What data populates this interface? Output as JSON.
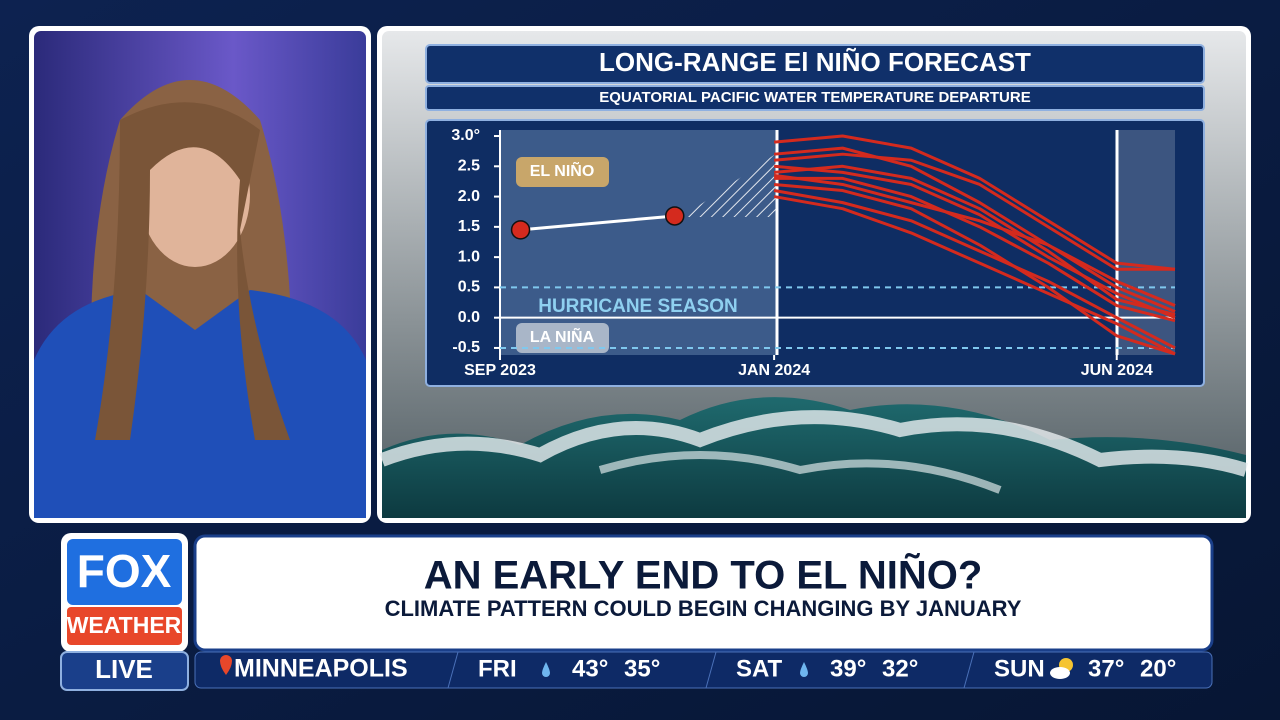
{
  "chart_data": {
    "type": "line",
    "title": "LONG-RANGE El NIÑO FORECAST",
    "subtitle": "EQUATORIAL PACIFIC WATER TEMPERATURE DEPARTURE",
    "annotations": [
      "EL NIÑO",
      "HURRICANE SEASON",
      "LA NIÑA"
    ],
    "xlim": [
      0,
      9.85
    ],
    "xticks": [
      {
        "value": 0,
        "label": "SEP 2023"
      },
      {
        "value": 4,
        "label": "JAN 2024"
      },
      {
        "value": 9,
        "label": "JUN 2024"
      }
    ],
    "ylim": [
      -0.6,
      3.05
    ],
    "yticks": [
      {
        "value": 3,
        "label": "3.0°"
      },
      2.5,
      {
        "value": 2,
        "label": "2.0"
      },
      1.5,
      {
        "value": 1,
        "label": "1.0"
      },
      0.5,
      {
        "value": 0,
        "label": "0.0"
      },
      -0.5
    ],
    "dashed_lines": [
      0.5,
      -0.5
    ],
    "series": [
      {
        "color": "#ffffff",
        "marker_color": "#d42a1e",
        "x": [
          0.3,
          2.55
        ],
        "values": [
          1.45,
          1.68
        ]
      },
      {
        "color": "#d42a1e",
        "x": [
          4,
          5,
          6,
          7,
          8,
          9,
          9.85
        ],
        "values": [
          2.9,
          3.0,
          2.8,
          2.3,
          1.6,
          0.9,
          0.8
        ]
      },
      {
        "color": "#d42a1e",
        "x": [
          4,
          5,
          6,
          7,
          8,
          9,
          9.85
        ],
        "values": [
          2.6,
          2.7,
          2.6,
          2.2,
          1.5,
          0.8,
          0.8
        ]
      },
      {
        "color": "#d42a1e",
        "x": [
          4,
          5,
          6,
          7,
          8,
          9,
          9.85
        ],
        "values": [
          2.5,
          2.4,
          2.2,
          1.7,
          1.0,
          0.4,
          0.0
        ]
      },
      {
        "color": "#d42a1e",
        "x": [
          4,
          5,
          6,
          7,
          8,
          9,
          9.85
        ],
        "values": [
          2.4,
          2.5,
          2.3,
          1.8,
          1.1,
          0.3,
          0.05
        ]
      },
      {
        "color": "#d42a1e",
        "x": [
          4,
          5,
          6,
          7,
          8,
          9,
          9.85
        ],
        "values": [
          2.3,
          2.3,
          2.0,
          1.5,
          0.9,
          0.2,
          -0.05
        ]
      },
      {
        "color": "#d42a1e",
        "x": [
          4,
          5,
          6,
          7,
          8,
          9,
          9.85
        ],
        "values": [
          2.2,
          2.1,
          1.8,
          1.2,
          0.5,
          -0.3,
          -0.6
        ]
      },
      {
        "color": "#d42a1e",
        "x": [
          4,
          5,
          6,
          7,
          8,
          9,
          9.85
        ],
        "values": [
          2.0,
          1.8,
          1.4,
          0.9,
          0.4,
          -0.1,
          -0.6
        ]
      },
      {
        "color": "#d42a1e",
        "x": [
          4,
          5,
          6,
          7,
          8,
          9,
          9.85
        ],
        "values": [
          2.35,
          2.2,
          1.9,
          1.6,
          1.2,
          0.5,
          0.1
        ]
      },
      {
        "color": "#d42a1e",
        "x": [
          4,
          5,
          6,
          7,
          8,
          9,
          9.85
        ],
        "values": [
          2.7,
          2.8,
          2.5,
          1.9,
          1.2,
          0.6,
          0.2
        ]
      },
      {
        "color": "#d42a1e",
        "x": [
          4,
          5,
          6,
          7,
          8,
          9,
          9.85
        ],
        "values": [
          2.1,
          1.9,
          1.6,
          1.1,
          0.6,
          0.0,
          -0.5
        ]
      }
    ]
  },
  "logo": {
    "brand": "FOX",
    "sub": "WEATHER",
    "status": "LIVE"
  },
  "headline": {
    "title": "AN EARLY END TO EL NIÑO?",
    "subtitle": "CLIMATE PATTERN COULD BEGIN CHANGING BY JANUARY"
  },
  "weather": {
    "location": "MINNEAPOLIS",
    "days": [
      {
        "day": "FRI",
        "high": "43°",
        "low": "35°"
      },
      {
        "day": "SAT",
        "high": "39°",
        "low": "32°"
      },
      {
        "day": "SUN",
        "high": "37°",
        "low": "20°"
      }
    ]
  }
}
